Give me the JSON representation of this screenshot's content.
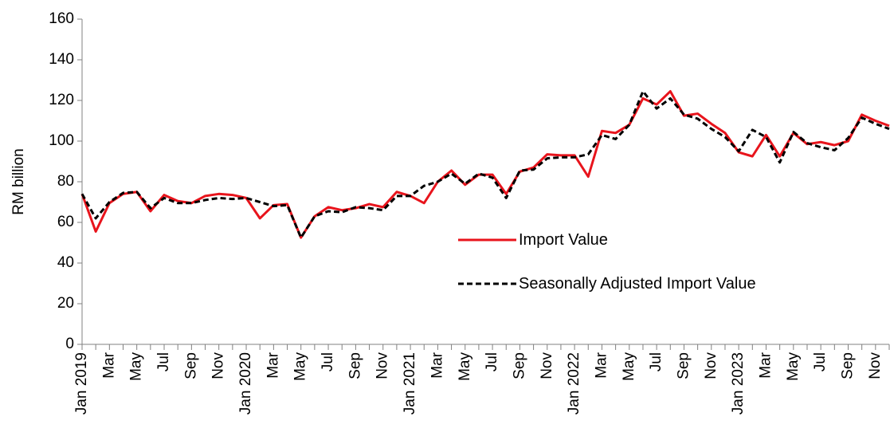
{
  "chart_data": {
    "type": "line",
    "y_label": "RM billion",
    "categories": [
      "Jan 2019",
      null,
      "Mar",
      null,
      "May",
      null,
      "Jul",
      null,
      "Sep",
      null,
      "Nov",
      null,
      "Jan 2020",
      null,
      "Mar",
      null,
      "May",
      null,
      "Jul",
      null,
      "Sep",
      null,
      "Nov",
      null,
      "Jan 2021",
      null,
      "Mar",
      null,
      "May",
      null,
      "Jul",
      null,
      "Sep",
      null,
      "Nov",
      null,
      "Jan 2022",
      null,
      "Mar",
      null,
      "May",
      null,
      "Jul",
      null,
      "Sep",
      null,
      "Nov",
      null,
      "Jan 2023",
      null,
      "Mar",
      null,
      "May",
      null,
      "Jul",
      null,
      "Sep",
      null,
      "Nov",
      null
    ],
    "series": [
      {
        "name": "Import Value",
        "color": "#e8141c",
        "dash": false,
        "values": [
          74,
          55.5,
          69.5,
          74,
          75,
          65.5,
          73.5,
          70.5,
          69.5,
          73,
          74,
          73.5,
          72,
          62,
          68.5,
          69,
          52.5,
          63,
          67.5,
          66,
          67,
          69,
          67.5,
          75,
          73,
          69.5,
          80,
          85.5,
          78.5,
          83.5,
          83.5,
          74,
          85,
          87,
          93.5,
          93,
          93,
          82.5,
          105,
          104,
          108,
          121,
          118,
          124.5,
          112.5,
          113.5,
          108.5,
          104,
          94.5,
          92.5,
          103,
          92.5,
          104,
          98.5,
          99.5,
          98,
          100,
          113,
          110,
          107.5
        ]
      },
      {
        "name": "Seasonally Adjusted Import Value",
        "color": "#000000",
        "dash": true,
        "values": [
          74,
          62,
          70,
          74.5,
          75,
          67,
          72,
          69.5,
          69.5,
          71,
          72,
          71.5,
          72,
          70,
          68,
          68.5,
          52.5,
          63,
          65.5,
          65,
          67.5,
          67,
          66,
          73,
          73,
          78,
          80,
          84,
          79,
          84,
          82,
          72,
          85.5,
          86,
          91.5,
          92,
          92,
          93.5,
          103,
          101,
          108,
          124.5,
          116,
          121,
          113,
          111,
          106,
          102,
          95,
          105.5,
          102,
          89.5,
          104.5,
          99,
          97,
          95.5,
          101.5,
          111.5,
          108.5,
          106
        ]
      }
    ],
    "ylim": [
      0,
      160
    ],
    "yticks": [
      0,
      20,
      40,
      60,
      80,
      100,
      120,
      140,
      160
    ],
    "grid": false
  }
}
